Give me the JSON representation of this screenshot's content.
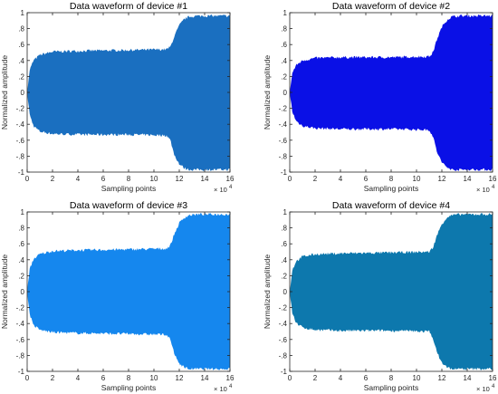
{
  "chart_data": [
    {
      "type": "area",
      "title": "Data waveform of device #1",
      "xlabel": "Sampling points",
      "ylabel": "Normalized amplitude",
      "x_exponent": "× 10",
      "x_exponent_power": "4",
      "xlim": [
        0,
        16
      ],
      "ylim": [
        -1,
        1
      ],
      "xticks": [
        0,
        2,
        4,
        6,
        8,
        10,
        12,
        14,
        16
      ],
      "yticks": [
        -1,
        -0.8,
        -0.6,
        -0.4,
        -0.2,
        0,
        0.2,
        0.4,
        0.6,
        0.8,
        1
      ],
      "grid": false,
      "color": "#1a6fc0",
      "envelope": {
        "x": [
          0,
          0.2,
          0.5,
          1,
          2,
          4,
          8,
          11,
          11.3,
          11.6,
          12,
          12.4,
          12.8,
          13.5,
          16
        ],
        "upper": [
          0.0,
          0.28,
          0.4,
          0.47,
          0.51,
          0.52,
          0.53,
          0.54,
          0.57,
          0.7,
          0.84,
          0.92,
          0.95,
          0.96,
          0.96
        ],
        "lower": [
          0.0,
          -0.28,
          -0.42,
          -0.49,
          -0.52,
          -0.53,
          -0.53,
          -0.54,
          -0.6,
          -0.78,
          -0.9,
          -0.95,
          -0.97,
          -0.97,
          -0.97
        ]
      }
    },
    {
      "type": "area",
      "title": "Data waveform of device #2",
      "xlabel": "Sampling points",
      "ylabel": "Normalized amplitude",
      "x_exponent": "× 10",
      "x_exponent_power": "4",
      "xlim": [
        0,
        16
      ],
      "ylim": [
        -1,
        1
      ],
      "xticks": [
        0,
        2,
        4,
        6,
        8,
        10,
        12,
        14,
        16
      ],
      "yticks": [
        -1,
        -0.8,
        -0.6,
        -0.4,
        -0.2,
        0,
        0.2,
        0.4,
        0.6,
        0.8,
        1
      ],
      "grid": false,
      "color": "#0a10e6",
      "envelope": {
        "x": [
          0,
          0.2,
          0.5,
          1,
          2,
          4,
          8,
          11,
          11.3,
          11.6,
          12,
          12.4,
          12.8,
          13.5,
          16
        ],
        "upper": [
          0.0,
          0.24,
          0.34,
          0.4,
          0.43,
          0.44,
          0.44,
          0.45,
          0.5,
          0.66,
          0.82,
          0.91,
          0.95,
          0.96,
          0.96
        ],
        "lower": [
          0.0,
          -0.24,
          -0.36,
          -0.42,
          -0.45,
          -0.46,
          -0.46,
          -0.47,
          -0.55,
          -0.74,
          -0.88,
          -0.94,
          -0.97,
          -0.97,
          -0.97
        ]
      }
    },
    {
      "type": "area",
      "title": "Data waveform of device #3",
      "xlabel": "Sampling points",
      "ylabel": "Normalized amplitude",
      "x_exponent": "× 10",
      "x_exponent_power": "4",
      "xlim": [
        0,
        16
      ],
      "ylim": [
        -1,
        1
      ],
      "xticks": [
        0,
        2,
        4,
        6,
        8,
        10,
        12,
        14,
        16
      ],
      "yticks": [
        -1,
        -0.8,
        -0.6,
        -0.4,
        -0.2,
        0,
        0.2,
        0.4,
        0.6,
        0.8,
        1
      ],
      "grid": false,
      "color": "#1587ee",
      "envelope": {
        "x": [
          0,
          0.2,
          0.5,
          1,
          2,
          4,
          8,
          11,
          11.3,
          11.6,
          12,
          12.4,
          12.8,
          13.5,
          16
        ],
        "upper": [
          0.0,
          0.28,
          0.41,
          0.47,
          0.51,
          0.52,
          0.53,
          0.54,
          0.58,
          0.72,
          0.86,
          0.93,
          0.96,
          0.97,
          0.97
        ],
        "lower": [
          0.0,
          -0.28,
          -0.42,
          -0.48,
          -0.51,
          -0.52,
          -0.53,
          -0.54,
          -0.6,
          -0.78,
          -0.9,
          -0.95,
          -0.97,
          -0.97,
          -0.97
        ]
      }
    },
    {
      "type": "area",
      "title": "Data waveform of device #4",
      "xlabel": "Sampling points",
      "ylabel": "Normalized amplitude",
      "x_exponent": "× 10",
      "x_exponent_power": "4",
      "xlim": [
        0,
        16
      ],
      "ylim": [
        -1,
        1
      ],
      "xticks": [
        0,
        2,
        4,
        6,
        8,
        10,
        12,
        14,
        16
      ],
      "yticks": [
        -1,
        -0.8,
        -0.6,
        -0.4,
        -0.2,
        0,
        0.2,
        0.4,
        0.6,
        0.8,
        1
      ],
      "grid": false,
      "color": "#0d78ad",
      "envelope": {
        "x": [
          0,
          0.2,
          0.5,
          1,
          2,
          4,
          8,
          11,
          11.3,
          11.6,
          12,
          12.4,
          12.8,
          13.5,
          16
        ],
        "upper": [
          0.0,
          0.27,
          0.38,
          0.44,
          0.47,
          0.48,
          0.49,
          0.5,
          0.55,
          0.7,
          0.85,
          0.93,
          0.96,
          0.97,
          0.97
        ],
        "lower": [
          0.0,
          -0.27,
          -0.39,
          -0.45,
          -0.48,
          -0.49,
          -0.49,
          -0.5,
          -0.58,
          -0.76,
          -0.89,
          -0.95,
          -0.97,
          -0.97,
          -0.97
        ]
      }
    }
  ]
}
